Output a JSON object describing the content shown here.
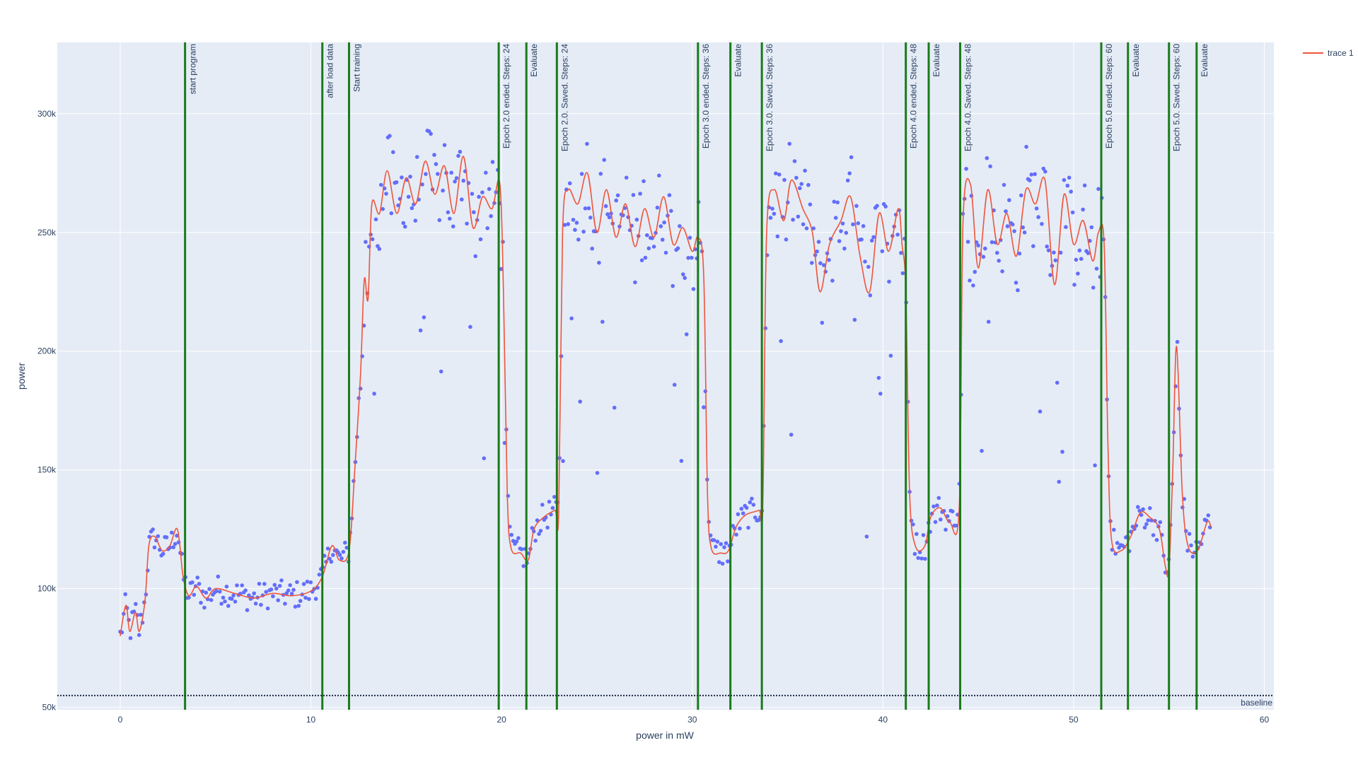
{
  "chart_data": {
    "type": "line",
    "xlabel": "power in mW",
    "ylabel": "power",
    "xlim": [
      -3.3,
      60.5
    ],
    "ylim": [
      49000,
      330000
    ],
    "x_ticks": [
      0,
      10,
      20,
      30,
      40,
      50,
      60
    ],
    "x_tick_labels": [
      "0",
      "10",
      "20",
      "30",
      "40",
      "50",
      "60"
    ],
    "y_ticks": [
      50000,
      100000,
      150000,
      200000,
      250000,
      300000
    ],
    "y_tick_labels": [
      "50k",
      "100k",
      "150k",
      "200k",
      "250k",
      "300k"
    ],
    "grid": true,
    "legend_position": "top-right",
    "colors": {
      "background": "#e5ecf6",
      "grid": "#ffffff",
      "scatter": "#636efa",
      "line": "#ef553b",
      "vline": "#1a7a1a",
      "baseline": "#1f2d45",
      "text": "#2a3f5f"
    },
    "series": [
      {
        "name": "trace 1",
        "type": "line",
        "anchors": [
          [
            0,
            80000
          ],
          [
            0.3,
            93000
          ],
          [
            0.5,
            82000
          ],
          [
            0.8,
            90000
          ],
          [
            1.0,
            82000
          ],
          [
            1.3,
            95000
          ],
          [
            1.5,
            118000
          ],
          [
            1.8,
            122000
          ],
          [
            2.2,
            116000
          ],
          [
            2.6,
            118000
          ],
          [
            3.0,
            125000
          ],
          [
            3.3,
            105000
          ],
          [
            3.6,
            97000
          ],
          [
            4.0,
            101000
          ],
          [
            4.5,
            96000
          ],
          [
            5.0,
            100000
          ],
          [
            6.0,
            98000
          ],
          [
            7.0,
            96000
          ],
          [
            8.0,
            98000
          ],
          [
            9.0,
            97000
          ],
          [
            10.0,
            99000
          ],
          [
            10.6,
            105000
          ],
          [
            11.1,
            118000
          ],
          [
            11.5,
            112000
          ],
          [
            12.0,
            116000
          ],
          [
            12.3,
            150000
          ],
          [
            12.6,
            190000
          ],
          [
            12.8,
            230000
          ],
          [
            13.0,
            222000
          ],
          [
            13.2,
            262000
          ],
          [
            13.6,
            258000
          ],
          [
            14.0,
            276000
          ],
          [
            14.5,
            258000
          ],
          [
            15.0,
            273000
          ],
          [
            15.5,
            262000
          ],
          [
            16.0,
            280000
          ],
          [
            16.5,
            266000
          ],
          [
            17.0,
            278000
          ],
          [
            17.5,
            258000
          ],
          [
            18.0,
            282000
          ],
          [
            18.5,
            252000
          ],
          [
            19.0,
            265000
          ],
          [
            19.5,
            260000
          ],
          [
            19.9,
            271000
          ],
          [
            20.1,
            225000
          ],
          [
            20.3,
            140000
          ],
          [
            20.5,
            117000
          ],
          [
            21.0,
            115000
          ],
          [
            21.4,
            112000
          ],
          [
            21.7,
            125000
          ],
          [
            22.2,
            130000
          ],
          [
            22.8,
            133000
          ],
          [
            23.0,
            133000
          ],
          [
            23.2,
            250000
          ],
          [
            23.5,
            268000
          ],
          [
            24.0,
            262000
          ],
          [
            24.5,
            275000
          ],
          [
            25.0,
            250000
          ],
          [
            25.5,
            268000
          ],
          [
            26.0,
            248000
          ],
          [
            26.5,
            262000
          ],
          [
            27.0,
            244000
          ],
          [
            27.5,
            260000
          ],
          [
            28.0,
            248000
          ],
          [
            28.5,
            265000
          ],
          [
            29.0,
            245000
          ],
          [
            29.5,
            252000
          ],
          [
            30.0,
            242000
          ],
          [
            30.3,
            248000
          ],
          [
            30.6,
            232000
          ],
          [
            30.8,
            140000
          ],
          [
            31.0,
            117000
          ],
          [
            31.5,
            115000
          ],
          [
            31.9,
            116000
          ],
          [
            32.3,
            126000
          ],
          [
            32.8,
            131000
          ],
          [
            33.5,
            133000
          ],
          [
            33.7,
            135000
          ],
          [
            33.9,
            250000
          ],
          [
            34.3,
            268000
          ],
          [
            34.8,
            255000
          ],
          [
            35.2,
            272000
          ],
          [
            35.8,
            260000
          ],
          [
            36.3,
            250000
          ],
          [
            36.7,
            225000
          ],
          [
            37.2,
            245000
          ],
          [
            37.8,
            255000
          ],
          [
            38.3,
            265000
          ],
          [
            38.8,
            240000
          ],
          [
            39.3,
            225000
          ],
          [
            39.8,
            258000
          ],
          [
            40.3,
            242000
          ],
          [
            40.8,
            260000
          ],
          [
            41.0,
            245000
          ],
          [
            41.2,
            225000
          ],
          [
            41.4,
            140000
          ],
          [
            41.7,
            118000
          ],
          [
            42.2,
            118000
          ],
          [
            42.5,
            130000
          ],
          [
            43.0,
            134000
          ],
          [
            43.5,
            128000
          ],
          [
            44.0,
            134000
          ],
          [
            44.2,
            255000
          ],
          [
            44.6,
            270000
          ],
          [
            45.0,
            235000
          ],
          [
            45.5,
            268000
          ],
          [
            46.0,
            245000
          ],
          [
            46.5,
            258000
          ],
          [
            47.0,
            240000
          ],
          [
            47.5,
            268000
          ],
          [
            48.0,
            262000
          ],
          [
            48.5,
            272000
          ],
          [
            49.0,
            228000
          ],
          [
            49.5,
            266000
          ],
          [
            50.0,
            245000
          ],
          [
            50.5,
            255000
          ],
          [
            51.0,
            238000
          ],
          [
            51.3,
            250000
          ],
          [
            51.6,
            245000
          ],
          [
            51.8,
            160000
          ],
          [
            52.0,
            120000
          ],
          [
            52.5,
            116000
          ],
          [
            53.0,
            122000
          ],
          [
            53.5,
            132000
          ],
          [
            54.0,
            130000
          ],
          [
            54.5,
            125000
          ],
          [
            54.8,
            110000
          ],
          [
            55.0,
            108000
          ],
          [
            55.2,
            150000
          ],
          [
            55.4,
            202000
          ],
          [
            55.7,
            140000
          ],
          [
            56.0,
            118000
          ],
          [
            56.5,
            116000
          ],
          [
            57.0,
            128000
          ],
          [
            57.2,
            126000
          ]
        ]
      },
      {
        "name": "",
        "type": "scatter",
        "note_points": "dense blue markers scattered around the trace"
      }
    ],
    "events": [
      {
        "x": 3.4,
        "label": "start program"
      },
      {
        "x": 10.6,
        "label": "after load data"
      },
      {
        "x": 12.0,
        "label": "Start training"
      },
      {
        "x": 19.85,
        "label": "Epoch 2.0 ended. Steps: 24"
      },
      {
        "x": 21.3,
        "label": "Evaluate"
      },
      {
        "x": 22.9,
        "label": "Epoch 2.0. Saved. Steps: 24"
      },
      {
        "x": 30.3,
        "label": "Epoch 3.0 ended. Steps: 36"
      },
      {
        "x": 32.0,
        "label": "Evaluate"
      },
      {
        "x": 33.65,
        "label": "Epoch 3.0. Saved. Steps: 36"
      },
      {
        "x": 41.2,
        "label": "Epoch 4.0 ended. Steps: 48"
      },
      {
        "x": 42.4,
        "label": "Evaluate"
      },
      {
        "x": 44.05,
        "label": "Epoch 4.0. Saved. Steps: 48"
      },
      {
        "x": 51.45,
        "label": "Epoch 5.0 ended. Steps: 60"
      },
      {
        "x": 52.85,
        "label": "Evaluate"
      },
      {
        "x": 55.0,
        "label": "Epoch 5.0. Saved. Steps: 60"
      },
      {
        "x": 56.45,
        "label": "Evaluate"
      }
    ],
    "baseline": {
      "y": 55000,
      "label": "baseline"
    }
  }
}
